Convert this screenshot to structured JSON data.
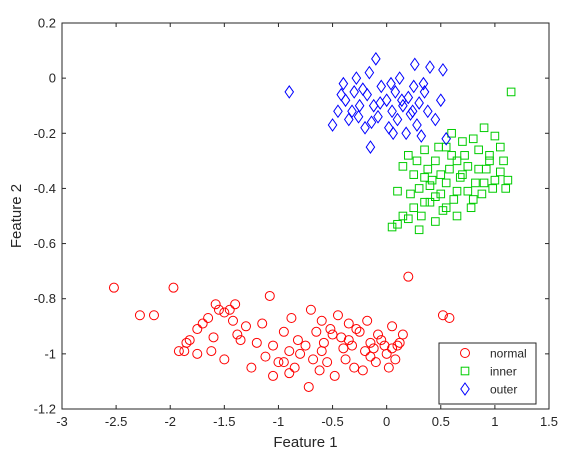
{
  "chart_data": {
    "type": "scatter",
    "title": "",
    "xlabel": "Feature 1",
    "ylabel": "Feature 2",
    "xlim": [
      -3,
      1.5
    ],
    "ylim": [
      -1.2,
      0.2
    ],
    "xticks": [
      -3,
      -2.5,
      -2,
      -1.5,
      -1,
      -0.5,
      0,
      0.5,
      1,
      1.5
    ],
    "xtick_labels": [
      "-3",
      "-2.5",
      "-2",
      "-1.5",
      "-1",
      "-0.5",
      "0",
      "0.5",
      "1",
      "1.5"
    ],
    "yticks": [
      0.2,
      0,
      -0.2,
      -0.4,
      -0.6,
      -0.8,
      -1,
      -1.2
    ],
    "ytick_labels": [
      "0.2",
      "0",
      "-0.2",
      "-0.4",
      "-0.6",
      "-0.8",
      "-1",
      "-1.2"
    ],
    "grid": false,
    "legend_position": "bottom-right",
    "series": [
      {
        "name": "normal",
        "marker": "circle",
        "color": "#ff0000",
        "points": [
          [
            -2.52,
            -0.76
          ],
          [
            -2.28,
            -0.86
          ],
          [
            -2.15,
            -0.86
          ],
          [
            -1.97,
            -0.76
          ],
          [
            -1.92,
            -0.99
          ],
          [
            -1.87,
            -0.99
          ],
          [
            -1.85,
            -0.96
          ],
          [
            -1.82,
            -0.95
          ],
          [
            -1.75,
            -0.91
          ],
          [
            -1.7,
            -0.89
          ],
          [
            -1.65,
            -0.87
          ],
          [
            -1.6,
            -0.94
          ],
          [
            -1.58,
            -0.82
          ],
          [
            -1.55,
            -0.84
          ],
          [
            -1.5,
            -0.85
          ],
          [
            -1.45,
            -0.84
          ],
          [
            -1.42,
            -0.88
          ],
          [
            -1.4,
            -0.82
          ],
          [
            -1.38,
            -0.93
          ],
          [
            -1.35,
            -0.95
          ],
          [
            -1.2,
            -0.96
          ],
          [
            -1.15,
            -0.89
          ],
          [
            -1.12,
            -1.01
          ],
          [
            -1.08,
            -0.79
          ],
          [
            -1.05,
            -0.97
          ],
          [
            -1.0,
            -1.03
          ],
          [
            -0.95,
            -0.92
          ],
          [
            -0.9,
            -0.99
          ],
          [
            -0.85,
            -1.05
          ],
          [
            -0.8,
            -1.0
          ],
          [
            -0.75,
            -0.97
          ],
          [
            -0.7,
            -0.84
          ],
          [
            -0.68,
            -1.02
          ],
          [
            -0.65,
            -0.92
          ],
          [
            -0.6,
            -0.88
          ],
          [
            -0.55,
            -1.03
          ],
          [
            -0.5,
            -0.93
          ],
          [
            -0.45,
            -0.86
          ],
          [
            -0.4,
            -0.98
          ],
          [
            -0.35,
            -0.89
          ],
          [
            -0.3,
            -1.05
          ],
          [
            -0.25,
            -0.92
          ],
          [
            -0.2,
            -0.99
          ],
          [
            -0.15,
            -0.96
          ],
          [
            -0.1,
            -1.03
          ],
          [
            -0.05,
            -0.95
          ],
          [
            0.0,
            -1.0
          ],
          [
            0.05,
            -0.9
          ],
          [
            0.1,
            -0.97
          ],
          [
            0.15,
            -0.93
          ],
          [
            0.2,
            -0.72
          ],
          [
            0.52,
            -0.86
          ],
          [
            0.58,
            -0.87
          ],
          [
            -1.62,
            -0.99
          ],
          [
            -1.5,
            -1.02
          ],
          [
            -1.3,
            -0.9
          ],
          [
            -1.25,
            -1.05
          ],
          [
            -1.05,
            -1.08
          ],
          [
            -0.95,
            -1.03
          ],
          [
            -0.88,
            -0.87
          ],
          [
            -0.82,
            -0.95
          ],
          [
            -0.72,
            -1.12
          ],
          [
            -0.62,
            -1.06
          ],
          [
            -0.58,
            -0.96
          ],
          [
            -0.52,
            -0.91
          ],
          [
            -0.48,
            -1.08
          ],
          [
            -0.42,
            -0.94
          ],
          [
            -0.38,
            -1.02
          ],
          [
            -0.32,
            -0.97
          ],
          [
            -0.28,
            -0.91
          ],
          [
            -0.22,
            -1.06
          ],
          [
            -0.18,
            -0.88
          ],
          [
            -0.12,
            -0.98
          ],
          [
            -0.08,
            -0.93
          ],
          [
            -0.02,
            -0.97
          ],
          [
            0.02,
            -1.05
          ],
          [
            0.08,
            -1.02
          ],
          [
            0.12,
            -0.96
          ],
          [
            -1.75,
            -1.0
          ],
          [
            -0.9,
            -1.07
          ],
          [
            -0.6,
            -0.99
          ],
          [
            -0.35,
            -0.95
          ],
          [
            -0.15,
            -1.01
          ],
          [
            0.05,
            -0.98
          ]
        ]
      },
      {
        "name": "inner",
        "marker": "square",
        "color": "#00cc00",
        "points": [
          [
            0.05,
            -0.54
          ],
          [
            0.1,
            -0.53
          ],
          [
            0.15,
            -0.5
          ],
          [
            0.2,
            -0.51
          ],
          [
            0.25,
            -0.47
          ],
          [
            0.3,
            -0.55
          ],
          [
            0.35,
            -0.45
          ],
          [
            0.4,
            -0.39
          ],
          [
            0.45,
            -0.3
          ],
          [
            0.5,
            -0.42
          ],
          [
            0.55,
            -0.38
          ],
          [
            0.6,
            -0.2
          ],
          [
            0.65,
            -0.3
          ],
          [
            0.7,
            -0.35
          ],
          [
            0.75,
            -0.41
          ],
          [
            0.8,
            -0.22
          ],
          [
            0.85,
            -0.33
          ],
          [
            0.9,
            -0.18
          ],
          [
            0.95,
            -0.28
          ],
          [
            1.0,
            -0.37
          ],
          [
            1.05,
            -0.25
          ],
          [
            1.1,
            -0.4
          ],
          [
            1.15,
            -0.05
          ],
          [
            0.2,
            -0.28
          ],
          [
            0.25,
            -0.35
          ],
          [
            0.3,
            -0.4
          ],
          [
            0.35,
            -0.26
          ],
          [
            0.4,
            -0.45
          ],
          [
            0.45,
            -0.52
          ],
          [
            0.5,
            -0.35
          ],
          [
            0.55,
            -0.47
          ],
          [
            0.6,
            -0.28
          ],
          [
            0.65,
            -0.41
          ],
          [
            0.7,
            -0.23
          ],
          [
            0.75,
            -0.32
          ],
          [
            0.8,
            -0.44
          ],
          [
            0.85,
            -0.26
          ],
          [
            0.9,
            -0.38
          ],
          [
            0.95,
            -0.3
          ],
          [
            1.0,
            -0.21
          ],
          [
            1.05,
            -0.34
          ],
          [
            0.1,
            -0.41
          ],
          [
            0.15,
            -0.32
          ],
          [
            0.22,
            -0.42
          ],
          [
            0.28,
            -0.3
          ],
          [
            0.32,
            -0.5
          ],
          [
            0.38,
            -0.33
          ],
          [
            0.42,
            -0.37
          ],
          [
            0.48,
            -0.25
          ],
          [
            0.52,
            -0.48
          ],
          [
            0.58,
            -0.33
          ],
          [
            0.62,
            -0.44
          ],
          [
            0.68,
            -0.36
          ],
          [
            0.72,
            -0.28
          ],
          [
            0.78,
            -0.47
          ],
          [
            0.82,
            -0.38
          ],
          [
            0.88,
            -0.42
          ],
          [
            0.92,
            -0.33
          ],
          [
            0.98,
            -0.4
          ],
          [
            1.08,
            -0.3
          ],
          [
            1.12,
            -0.37
          ],
          [
            0.55,
            -0.25
          ],
          [
            0.45,
            -0.43
          ],
          [
            0.35,
            -0.36
          ],
          [
            0.65,
            -0.5
          ]
        ]
      },
      {
        "name": "outer",
        "marker": "diamond",
        "color": "#0000ff",
        "points": [
          [
            -0.9,
            -0.05
          ],
          [
            -0.5,
            -0.17
          ],
          [
            -0.45,
            -0.12
          ],
          [
            -0.4,
            -0.02
          ],
          [
            -0.38,
            -0.08
          ],
          [
            -0.35,
            -0.15
          ],
          [
            -0.3,
            -0.05
          ],
          [
            -0.28,
            0.0
          ],
          [
            -0.25,
            -0.1
          ],
          [
            -0.2,
            -0.18
          ],
          [
            -0.18,
            -0.06
          ],
          [
            -0.15,
            -0.25
          ],
          [
            -0.12,
            -0.1
          ],
          [
            -0.1,
            0.07
          ],
          [
            -0.08,
            -0.14
          ],
          [
            -0.05,
            -0.03
          ],
          [
            0.0,
            -0.08
          ],
          [
            0.02,
            -0.18
          ],
          [
            0.05,
            -0.12
          ],
          [
            0.08,
            -0.05
          ],
          [
            0.1,
            -0.15
          ],
          [
            0.12,
            0.0
          ],
          [
            0.15,
            -0.1
          ],
          [
            0.18,
            -0.2
          ],
          [
            0.2,
            -0.07
          ],
          [
            0.22,
            -0.13
          ],
          [
            0.25,
            -0.03
          ],
          [
            0.28,
            -0.17
          ],
          [
            0.3,
            -0.09
          ],
          [
            0.32,
            -0.21
          ],
          [
            0.35,
            -0.05
          ],
          [
            0.38,
            -0.12
          ],
          [
            0.4,
            0.04
          ],
          [
            0.45,
            -0.15
          ],
          [
            0.5,
            -0.08
          ],
          [
            0.52,
            0.03
          ],
          [
            0.55,
            -0.22
          ],
          [
            -0.42,
            -0.06
          ],
          [
            -0.32,
            -0.12
          ],
          [
            -0.22,
            -0.04
          ],
          [
            -0.14,
            -0.16
          ],
          [
            -0.06,
            -0.09
          ],
          [
            0.04,
            -0.02
          ],
          [
            0.14,
            -0.08
          ],
          [
            0.24,
            -0.12
          ],
          [
            0.34,
            -0.02
          ],
          [
            -0.26,
            -0.14
          ],
          [
            -0.16,
            0.02
          ],
          [
            0.06,
            -0.2
          ],
          [
            0.26,
            0.05
          ]
        ]
      }
    ]
  }
}
